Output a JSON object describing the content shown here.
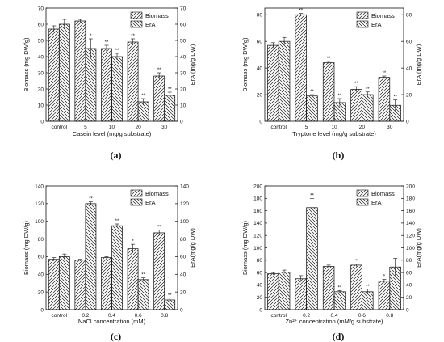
{
  "figure": {
    "panels": [
      "(a)",
      "(b)",
      "(c)",
      "(d)"
    ]
  },
  "chart_data": [
    {
      "type": "bar",
      "panel": "(a)",
      "categories": [
        "control",
        "5",
        "10",
        "20",
        "30"
      ],
      "xlabel": "Casein level (mg/g substrate)",
      "ylabel": "Biomass (mg DW/g)",
      "y2label": "ErA (mg/g DW)",
      "ylim": [
        0,
        70
      ],
      "yticks": [
        0,
        10,
        20,
        30,
        40,
        50,
        60,
        70
      ],
      "y2lim": [
        0,
        70
      ],
      "y2ticks": [
        0,
        10,
        20,
        30,
        40,
        50,
        60,
        70
      ],
      "legend": "top-right",
      "series": [
        {
          "name": "Biomass",
          "axis": "left",
          "values": [
            57,
            62,
            45,
            49,
            28
          ],
          "errors": [
            2,
            1,
            2,
            2,
            2
          ],
          "labels": [
            "",
            "",
            "**",
            "**",
            "**"
          ],
          "pattern": "forward"
        },
        {
          "name": "ErA",
          "axis": "right",
          "values": [
            60,
            45,
            40,
            12,
            16
          ],
          "errors": [
            3,
            6,
            2,
            2,
            2
          ],
          "labels": [
            "",
            "*",
            "**",
            "**",
            "**"
          ],
          "pattern": "backward"
        }
      ]
    },
    {
      "type": "bar",
      "panel": "(b)",
      "categories": [
        "control",
        "5",
        "10",
        "20",
        "30"
      ],
      "xlabel": "Tryptone level (mg/g substrate)",
      "ylabel": "Biomass (mg DW/g)",
      "y2label": "ErA (mg/g DW)",
      "ylim": [
        0,
        85
      ],
      "yticks": [
        0,
        20,
        40,
        60,
        80
      ],
      "y2lim": [
        0,
        85
      ],
      "y2ticks": [
        0,
        20,
        40,
        60,
        80
      ],
      "legend": "top-right",
      "series": [
        {
          "name": "Biomass",
          "axis": "left",
          "values": [
            57,
            80,
            44,
            24,
            33
          ],
          "errors": [
            2,
            1,
            1,
            2,
            1
          ],
          "labels": [
            "",
            "**",
            "**",
            "**",
            "**"
          ],
          "pattern": "forward"
        },
        {
          "name": "ErA",
          "axis": "right",
          "values": [
            60,
            19,
            14,
            20,
            12
          ],
          "errors": [
            3,
            1,
            3,
            2,
            4
          ],
          "labels": [
            "",
            "**",
            "**",
            "**",
            "**"
          ],
          "pattern": "backward"
        }
      ]
    },
    {
      "type": "bar",
      "panel": "(c)",
      "categories": [
        "control",
        "0.2",
        "0.4",
        "0.6",
        "0.8"
      ],
      "xlabel": "NaCl concentration (mM)",
      "ylabel": "Biomass (mg DW/g)",
      "y2label": "ErA(mg/g DW)",
      "ylim": [
        0,
        140
      ],
      "yticks": [
        0,
        20,
        40,
        60,
        80,
        100,
        120,
        140
      ],
      "y2lim": [
        0,
        140
      ],
      "y2ticks": [
        0,
        20,
        40,
        60,
        80,
        100,
        120,
        140
      ],
      "legend": "top-right",
      "series": [
        {
          "name": "Biomass",
          "axis": "left",
          "values": [
            57,
            56,
            59,
            69,
            87
          ],
          "errors": [
            2,
            1,
            1,
            5,
            3
          ],
          "labels": [
            "",
            "",
            "",
            "*",
            "**"
          ],
          "pattern": "forward"
        },
        {
          "name": "ErA",
          "axis": "right",
          "values": [
            60,
            120,
            95,
            34,
            11
          ],
          "errors": [
            3,
            2,
            2,
            2,
            2
          ],
          "labels": [
            "",
            "**",
            "**",
            "**",
            "**"
          ],
          "pattern": "backward"
        }
      ]
    },
    {
      "type": "bar",
      "panel": "(d)",
      "categories": [
        "control",
        "0.2",
        "0.4",
        "0.6",
        "0.8"
      ],
      "xlabel": "Zn²⁺ concentration (mM/g substrate)",
      "ylabel": "Biomass (mg DW/g)",
      "y2label": "ErA(mg/g DW)",
      "ylim": [
        0,
        200
      ],
      "yticks": [
        0,
        20,
        40,
        60,
        80,
        100,
        120,
        140,
        160,
        180,
        200
      ],
      "y2lim": [
        0,
        200
      ],
      "y2ticks": [
        0,
        20,
        40,
        60,
        80,
        100,
        120,
        140,
        160,
        180,
        200
      ],
      "legend": "top-right",
      "series": [
        {
          "name": "Biomass",
          "axis": "left",
          "values": [
            58,
            50,
            70,
            72,
            46
          ],
          "errors": [
            2,
            5,
            2,
            2,
            3
          ],
          "labels": [
            "",
            "",
            "",
            "*",
            "*"
          ],
          "pattern": "forward"
        },
        {
          "name": "ErA",
          "axis": "right",
          "values": [
            61,
            165,
            29,
            29,
            69
          ],
          "errors": [
            3,
            15,
            2,
            4,
            14
          ],
          "labels": [
            "",
            "**",
            "**",
            "**",
            ""
          ],
          "pattern": "backward"
        }
      ]
    }
  ]
}
